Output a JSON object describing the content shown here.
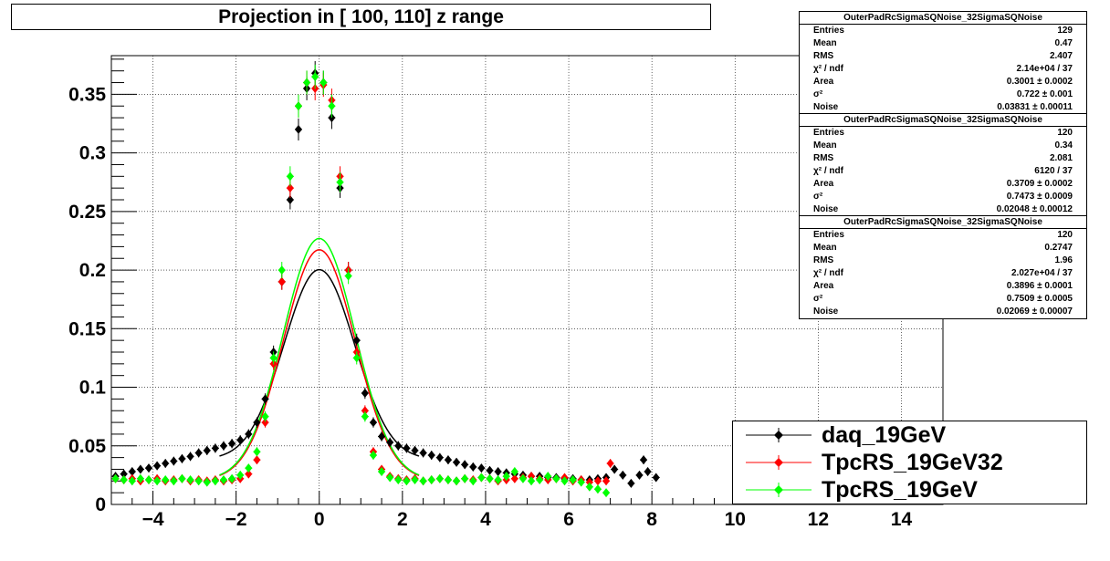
{
  "title": "Projection in [ 100, 110] z range",
  "stats_boxes": [
    {
      "name": "OuterPadRcSigmaSQNoise_32SigmaSQNoise",
      "rows": [
        {
          "k": "Entries",
          "v": "129"
        },
        {
          "k": "Mean",
          "v": "0.47"
        },
        {
          "k": "RMS",
          "v": "2.407"
        },
        {
          "k": "χ² / ndf",
          "v": "2.14e+04 / 37"
        },
        {
          "k": "Area",
          "v": "0.3001 ± 0.0002"
        },
        {
          "k": "σ²",
          "v": "0.722 ± 0.001"
        },
        {
          "k": "Noise",
          "v": "0.03831 ± 0.00011"
        }
      ]
    },
    {
      "name": "OuterPadRcSigmaSQNoise_32SigmaSQNoise",
      "rows": [
        {
          "k": "Entries",
          "v": "120"
        },
        {
          "k": "Mean",
          "v": "0.34"
        },
        {
          "k": "RMS",
          "v": "2.081"
        },
        {
          "k": "χ² / ndf",
          "v": "6120 / 37"
        },
        {
          "k": "Area",
          "v": "0.3709 ± 0.0002"
        },
        {
          "k": "σ²",
          "v": "0.7473 ± 0.0009"
        },
        {
          "k": "Noise",
          "v": "0.02048 ± 0.00012"
        }
      ]
    },
    {
      "name": "OuterPadRcSigmaSQNoise_32SigmaSQNoise",
      "rows": [
        {
          "k": "Entries",
          "v": "120"
        },
        {
          "k": "Mean",
          "v": "0.2747"
        },
        {
          "k": "RMS",
          "v": "1.96"
        },
        {
          "k": "χ² / ndf",
          "v": "2.027e+04 / 37"
        },
        {
          "k": "Area",
          "v": "0.3896 ± 0.0001"
        },
        {
          "k": "σ²",
          "v": "0.7509 ± 0.0005"
        },
        {
          "k": "Noise",
          "v": "0.02069 ± 0.00007"
        }
      ]
    }
  ],
  "legend": [
    {
      "label": "daq_19GeV",
      "color": "#000000"
    },
    {
      "label": "TpcRS_19GeV32",
      "color": "#ff0000"
    },
    {
      "label": "TpcRS_19GeV",
      "color": "#00ff00"
    }
  ],
  "chart_data": {
    "type": "scatter",
    "title": "Projection in [ 100, 110] z range",
    "xlabel": "",
    "ylabel": "",
    "xlim": [
      -5,
      15
    ],
    "ylim": [
      0,
      0.383
    ],
    "x_ticks": [
      "−4",
      "−2",
      "0",
      "2",
      "4",
      "6",
      "8",
      "10",
      "12",
      "14"
    ],
    "x_tick_values": [
      -4,
      -2,
      0,
      2,
      4,
      6,
      8,
      10,
      12,
      14
    ],
    "y_ticks": [
      "0",
      "0.05",
      "0.1",
      "0.15",
      "0.2",
      "0.25",
      "0.3",
      "0.35"
    ],
    "y_tick_values": [
      0,
      0.05,
      0.1,
      0.15,
      0.2,
      0.25,
      0.3,
      0.35
    ],
    "grid": true,
    "legend_position": "bottom-right",
    "series": [
      {
        "name": "daq_19GeV",
        "color": "#000000",
        "x": [
          -4.9,
          -4.7,
          -4.5,
          -4.3,
          -4.1,
          -3.9,
          -3.7,
          -3.5,
          -3.3,
          -3.1,
          -2.9,
          -2.7,
          -2.5,
          -2.3,
          -2.1,
          -1.9,
          -1.7,
          -1.5,
          -1.3,
          -1.1,
          -0.9,
          -0.7,
          -0.5,
          -0.3,
          -0.1,
          0.1,
          0.3,
          0.5,
          0.7,
          0.9,
          1.1,
          1.3,
          1.5,
          1.7,
          1.9,
          2.1,
          2.3,
          2.5,
          2.7,
          2.9,
          3.1,
          3.3,
          3.5,
          3.7,
          3.9,
          4.1,
          4.3,
          4.5,
          4.7,
          4.9,
          5.1,
          5.3,
          5.5,
          5.7,
          5.9,
          6.1,
          6.3,
          6.5,
          6.7,
          6.9,
          7.1,
          7.3,
          7.5,
          7.7,
          7.8,
          7.9,
          8.1
        ],
        "y": [
          0.024,
          0.026,
          0.028,
          0.03,
          0.031,
          0.033,
          0.035,
          0.037,
          0.039,
          0.041,
          0.044,
          0.046,
          0.048,
          0.05,
          0.052,
          0.055,
          0.06,
          0.07,
          0.09,
          0.13,
          0.19,
          0.26,
          0.32,
          0.355,
          0.368,
          0.36,
          0.33,
          0.27,
          0.2,
          0.14,
          0.095,
          0.07,
          0.058,
          0.053,
          0.05,
          0.048,
          0.046,
          0.044,
          0.042,
          0.04,
          0.038,
          0.036,
          0.034,
          0.032,
          0.031,
          0.029,
          0.028,
          0.027,
          0.026,
          0.025,
          0.024,
          0.024,
          0.023,
          0.023,
          0.022,
          0.022,
          0.021,
          0.021,
          0.022,
          0.023,
          0.03,
          0.025,
          0.018,
          0.025,
          0.038,
          0.028,
          0.023
        ]
      },
      {
        "name": "TpcRS_19GeV32",
        "color": "#ff0000",
        "x": [
          -4.9,
          -4.7,
          -4.5,
          -4.3,
          -4.1,
          -3.9,
          -3.7,
          -3.5,
          -3.3,
          -3.1,
          -2.9,
          -2.7,
          -2.5,
          -2.3,
          -2.1,
          -1.9,
          -1.7,
          -1.5,
          -1.3,
          -1.1,
          -0.9,
          -0.7,
          -0.5,
          -0.3,
          -0.1,
          0.1,
          0.3,
          0.5,
          0.7,
          0.9,
          1.1,
          1.3,
          1.5,
          1.7,
          1.9,
          2.1,
          2.3,
          2.5,
          2.7,
          2.9,
          3.1,
          3.3,
          3.5,
          3.7,
          3.9,
          4.1,
          4.3,
          4.5,
          4.7,
          4.9,
          5.1,
          5.3,
          5.5,
          5.7,
          5.9,
          6.1,
          6.3,
          6.5,
          6.7,
          6.9,
          7.0
        ],
        "y": [
          0.022,
          0.021,
          0.022,
          0.02,
          0.021,
          0.022,
          0.02,
          0.021,
          0.022,
          0.02,
          0.021,
          0.02,
          0.021,
          0.02,
          0.021,
          0.022,
          0.026,
          0.038,
          0.07,
          0.12,
          0.19,
          0.27,
          0.34,
          0.36,
          0.355,
          0.358,
          0.345,
          0.28,
          0.2,
          0.13,
          0.08,
          0.045,
          0.03,
          0.024,
          0.022,
          0.021,
          0.022,
          0.02,
          0.021,
          0.022,
          0.021,
          0.02,
          0.022,
          0.021,
          0.023,
          0.022,
          0.02,
          0.021,
          0.022,
          0.023,
          0.024,
          0.022,
          0.021,
          0.022,
          0.023,
          0.02,
          0.021,
          0.019,
          0.02,
          0.02,
          0.035
        ]
      },
      {
        "name": "TpcRS_19GeV",
        "color": "#00ff00",
        "x": [
          -4.9,
          -4.7,
          -4.5,
          -4.3,
          -4.1,
          -3.9,
          -3.7,
          -3.5,
          -3.3,
          -3.1,
          -2.9,
          -2.7,
          -2.5,
          -2.3,
          -2.1,
          -1.9,
          -1.7,
          -1.5,
          -1.3,
          -1.1,
          -0.9,
          -0.7,
          -0.5,
          -0.3,
          -0.1,
          0.1,
          0.3,
          0.5,
          0.7,
          0.9,
          1.1,
          1.3,
          1.5,
          1.7,
          1.9,
          2.1,
          2.3,
          2.5,
          2.7,
          2.9,
          3.1,
          3.3,
          3.5,
          3.7,
          3.9,
          4.1,
          4.3,
          4.5,
          4.7,
          4.9,
          5.1,
          5.3,
          5.5,
          5.7,
          5.9,
          6.1,
          6.3,
          6.5,
          6.7,
          6.9
        ],
        "y": [
          0.022,
          0.021,
          0.02,
          0.022,
          0.021,
          0.02,
          0.021,
          0.02,
          0.022,
          0.021,
          0.02,
          0.019,
          0.02,
          0.021,
          0.022,
          0.025,
          0.031,
          0.045,
          0.075,
          0.125,
          0.2,
          0.28,
          0.34,
          0.36,
          0.365,
          0.36,
          0.34,
          0.275,
          0.195,
          0.125,
          0.075,
          0.042,
          0.028,
          0.023,
          0.021,
          0.02,
          0.021,
          0.02,
          0.021,
          0.022,
          0.021,
          0.02,
          0.022,
          0.02,
          0.023,
          0.022,
          0.021,
          0.024,
          0.028,
          0.022,
          0.02,
          0.021,
          0.024,
          0.022,
          0.02,
          0.021,
          0.019,
          0.015,
          0.013,
          0.01
        ]
      }
    ],
    "fit_curves": [
      {
        "name": "daq_19GeV fit",
        "color": "#000000"
      },
      {
        "name": "TpcRS_19GeV32 fit",
        "color": "#ff0000"
      },
      {
        "name": "TpcRS_19GeV fit",
        "color": "#00ff00"
      }
    ]
  }
}
